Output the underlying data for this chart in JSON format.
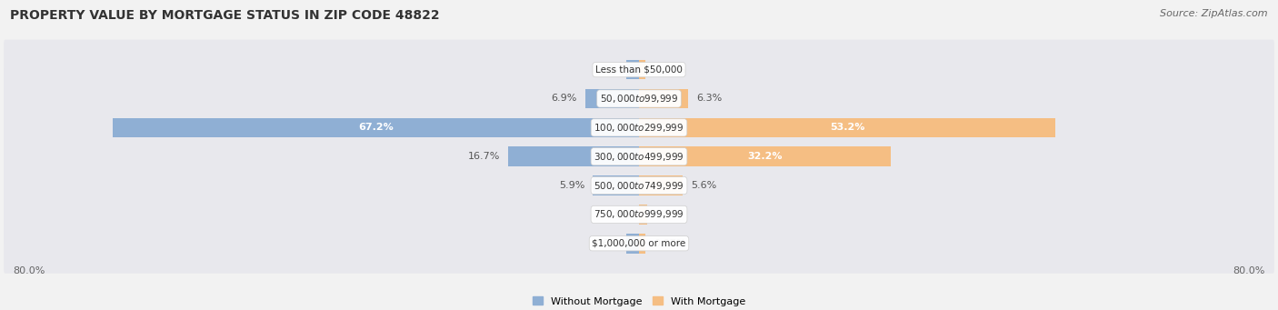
{
  "title": "PROPERTY VALUE BY MORTGAGE STATUS IN ZIP CODE 48822",
  "source": "Source: ZipAtlas.com",
  "categories": [
    "Less than $50,000",
    "$50,000 to $99,999",
    "$100,000 to $299,999",
    "$300,000 to $499,999",
    "$500,000 to $749,999",
    "$750,000 to $999,999",
    "$1,000,000 or more"
  ],
  "without_mortgage": [
    1.6,
    6.9,
    67.2,
    16.7,
    5.9,
    0.0,
    1.6
  ],
  "with_mortgage": [
    0.87,
    6.3,
    53.2,
    32.2,
    5.6,
    1.0,
    0.87
  ],
  "without_mortgage_color": "#8FAFD4",
  "with_mortgage_color": "#F5BE83",
  "background_color": "#F2F2F2",
  "row_bg_color": "#E8E8ED",
  "title_fontsize": 10,
  "source_fontsize": 8,
  "label_fontsize": 8,
  "axis_max": 80.0,
  "legend_label_without": "Without Mortgage",
  "legend_label_with": "With Mortgage",
  "axis_label_left": "80.0%",
  "axis_label_right": "80.0%"
}
